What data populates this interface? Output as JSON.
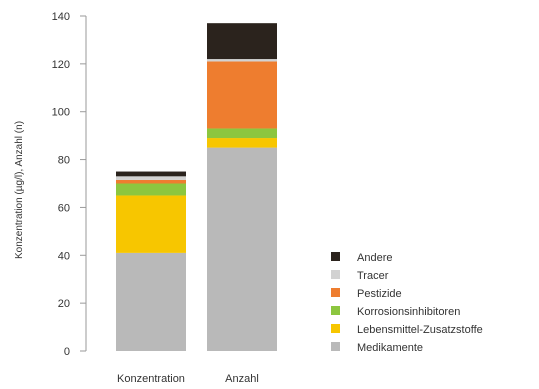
{
  "chart_data": {
    "type": "bar",
    "stacked": true,
    "categories": [
      "Konzentration",
      "Anzahl"
    ],
    "ylabel": "Konzentration (µg/l), Anzahl (n)",
    "xlabel": "",
    "ylim": [
      0,
      140
    ],
    "yticks": [
      0,
      20,
      40,
      60,
      80,
      100,
      120,
      140
    ],
    "grid": false,
    "legend_position": "right",
    "series": [
      {
        "name": "Medikamente",
        "color": "#b9b9b9",
        "values": [
          41,
          85
        ]
      },
      {
        "name": "Lebensmittel-Zusatzstoffe",
        "color": "#f7c600",
        "values": [
          24,
          4
        ]
      },
      {
        "name": "Korrosionsinhibitoren",
        "color": "#8cc63f",
        "values": [
          5,
          4
        ]
      },
      {
        "name": "Pestizide",
        "color": "#ee7d2f",
        "values": [
          1.5,
          28
        ]
      },
      {
        "name": "Tracer",
        "color": "#d2d2d2",
        "values": [
          1.5,
          1
        ]
      },
      {
        "name": "Andere",
        "color": "#2b231d",
        "values": [
          2,
          15
        ]
      }
    ]
  }
}
